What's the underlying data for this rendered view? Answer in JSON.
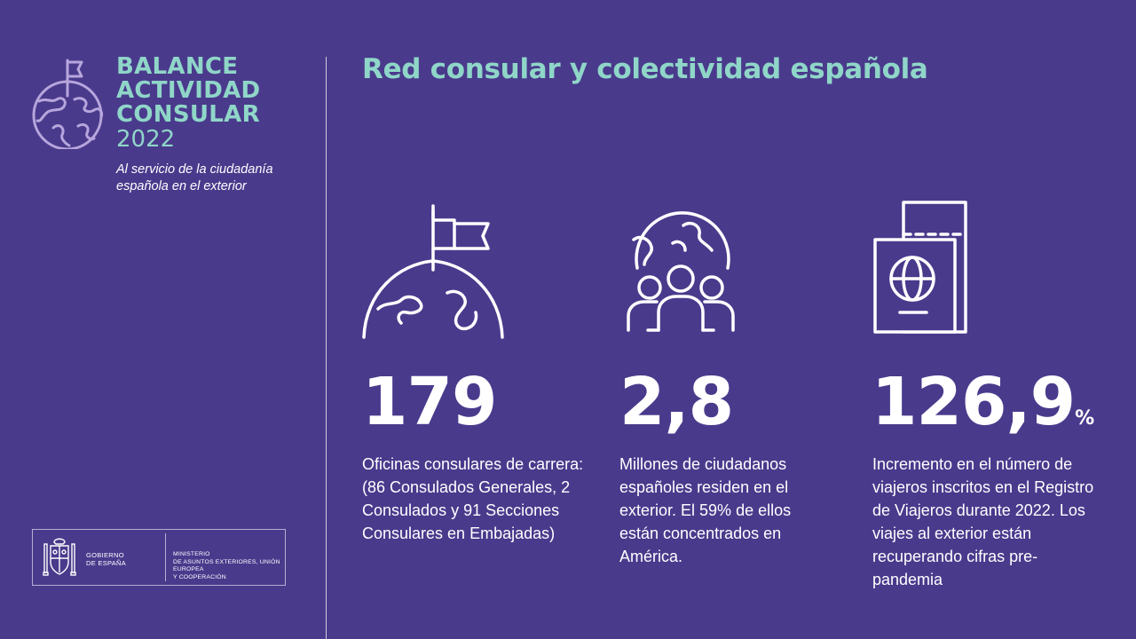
{
  "brand": {
    "line1": "BALANCE",
    "line2": "ACTIVIDAD",
    "line3": "CONSULAR",
    "year": "2022",
    "tagline_1": "Al servicio de la ciudadanía",
    "tagline_2": "española en el exterior",
    "icon": "globe-flag-icon"
  },
  "government": {
    "gob_line1": "GOBIERNO",
    "gob_line2": "DE ESPAÑA",
    "ministry_line1": "MINISTERIO",
    "ministry_line2": "DE ASUNTOS EXTERIORES, UNIÓN EUROPEA",
    "ministry_line3": "Y COOPERACIÓN",
    "icon": "coat-of-arms-icon"
  },
  "title": "Red consular y colectividad española",
  "stats": [
    {
      "icon": "globe-flag-icon",
      "value": "179",
      "unit": "",
      "description": "Oficinas consulares de carrera: (86 Consulados Generales, 2 Consulados y 91 Secciones Consulares en Embajadas)"
    },
    {
      "icon": "globe-people-icon",
      "value": "2,8",
      "unit": "",
      "description": "Millones de ciudadanos españoles residen en el exterior. El 59% de ellos están concentrados en América."
    },
    {
      "icon": "passport-ticket-icon",
      "value": "126,9",
      "unit": "%",
      "description": "Incremento en el número de viajeros inscritos en el Registro de Viajeros durante 2022. Los viajes al exterior están recuperando cifras pre-pandemia"
    }
  ],
  "colors": {
    "background": "#4a3a8c",
    "accent": "#8fd6c8",
    "text": "#ffffff"
  }
}
